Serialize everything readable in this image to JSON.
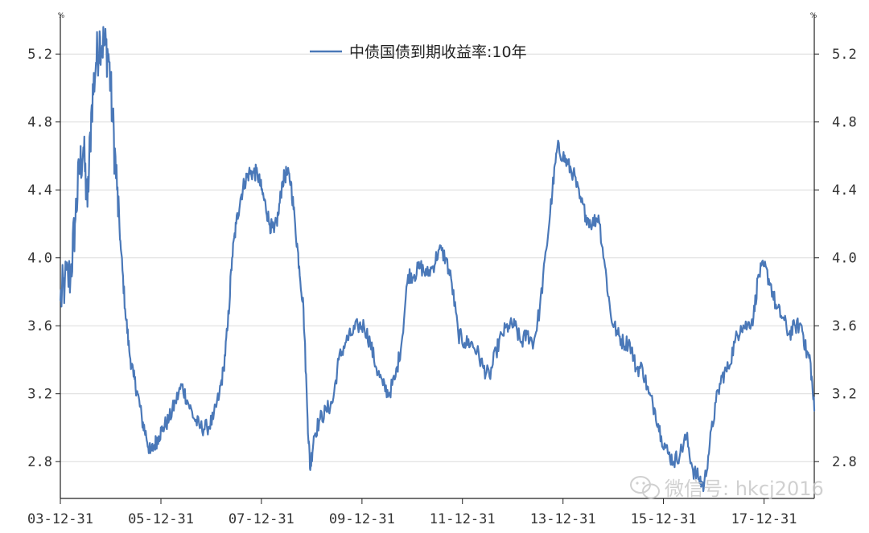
{
  "chart_data": {
    "type": "line",
    "unit_left": "%",
    "unit_right": "%",
    "yticks": [
      2.8,
      3.2,
      3.6,
      4.0,
      4.4,
      4.8,
      5.2
    ],
    "ytick_labels": [
      "2.8",
      "3.2",
      "3.6",
      "4.0",
      "4.4",
      "4.8",
      "5.2"
    ],
    "ylim": [
      2.5833,
      5.433
    ],
    "xlim": [
      "2003-12-31",
      "2018-12-31"
    ],
    "xticks": [
      {
        "date": "2003-12-31",
        "label": "03-12-31"
      },
      {
        "date": "2005-12-31",
        "label": "05-12-31"
      },
      {
        "date": "2007-12-31",
        "label": "07-12-31"
      },
      {
        "date": "2009-12-31",
        "label": "09-12-31"
      },
      {
        "date": "2011-12-31",
        "label": "11-12-31"
      },
      {
        "date": "2013-12-31",
        "label": "13-12-31"
      },
      {
        "date": "2015-12-31",
        "label": "15-12-31"
      },
      {
        "date": "2017-12-31",
        "label": "17-12-31"
      }
    ],
    "grid": true,
    "legend_position": "top-center",
    "series": [
      {
        "name": "中债国债到期收益率:10年",
        "color": "#4a78b8",
        "x": [
          "2003-12-31",
          "2004-02-01",
          "2004-03-15",
          "2004-04-15",
          "2004-05-15",
          "2004-06-15",
          "2004-07-15",
          "2004-08-15",
          "2004-09-15",
          "2004-10-15",
          "2004-11-15",
          "2004-12-15",
          "2005-01-15",
          "2005-02-15",
          "2005-03-15",
          "2005-04-15",
          "2005-05-15",
          "2005-06-15",
          "2005-07-15",
          "2005-08-15",
          "2005-09-15",
          "2005-10-15",
          "2005-11-15",
          "2005-12-15",
          "2006-01-15",
          "2006-03-01",
          "2006-04-15",
          "2006-06-01",
          "2006-07-15",
          "2006-09-01",
          "2006-10-15",
          "2006-12-01",
          "2007-01-15",
          "2007-03-01",
          "2007-04-01",
          "2007-05-01",
          "2007-06-01",
          "2007-07-01",
          "2007-08-01",
          "2007-09-01",
          "2007-10-01",
          "2007-11-01",
          "2007-12-01",
          "2008-01-01",
          "2008-02-01",
          "2008-03-01",
          "2008-04-01",
          "2008-05-01",
          "2008-06-01",
          "2008-07-01",
          "2008-08-01",
          "2008-09-01",
          "2008-10-01",
          "2008-11-01",
          "2008-12-01",
          "2008-12-20",
          "2009-01-15",
          "2009-03-01",
          "2009-04-15",
          "2009-06-01",
          "2009-07-15",
          "2009-09-01",
          "2009-10-15",
          "2009-12-01",
          "2010-01-15",
          "2010-03-01",
          "2010-04-15",
          "2010-06-01",
          "2010-07-15",
          "2010-09-01",
          "2010-10-15",
          "2010-12-01",
          "2011-01-15",
          "2011-03-01",
          "2011-04-15",
          "2011-06-01",
          "2011-07-15",
          "2011-09-01",
          "2011-10-15",
          "2011-12-01",
          "2012-01-15",
          "2012-03-01",
          "2012-04-15",
          "2012-06-01",
          "2012-07-15",
          "2012-09-01",
          "2012-10-15",
          "2012-12-01",
          "2013-01-15",
          "2013-03-01",
          "2013-04-15",
          "2013-06-01",
          "2013-07-15",
          "2013-09-01",
          "2013-10-15",
          "2013-11-20",
          "2013-12-31",
          "2014-02-01",
          "2014-03-15",
          "2014-05-01",
          "2014-06-15",
          "2014-08-01",
          "2014-09-15",
          "2014-11-01",
          "2014-12-15",
          "2015-02-01",
          "2015-03-15",
          "2015-05-01",
          "2015-06-15",
          "2015-08-01",
          "2015-09-15",
          "2015-11-01",
          "2015-12-15",
          "2016-02-01",
          "2016-03-15",
          "2016-05-01",
          "2016-06-15",
          "2016-08-01",
          "2016-09-15",
          "2016-10-20",
          "2016-12-01",
          "2017-01-15",
          "2017-03-01",
          "2017-04-15",
          "2017-06-01",
          "2017-07-15",
          "2017-09-01",
          "2017-10-15",
          "2017-11-20",
          "2018-01-01",
          "2018-02-15",
          "2018-04-01",
          "2018-05-15",
          "2018-07-01",
          "2018-08-15",
          "2018-10-01",
          "2018-11-01",
          "2018-12-01",
          "2018-12-31"
        ],
        "values": [
          3.75,
          3.85,
          3.9,
          4.2,
          4.5,
          4.65,
          4.3,
          4.9,
          5.15,
          5.3,
          5.25,
          5.2,
          4.8,
          4.4,
          4.05,
          3.7,
          3.45,
          3.3,
          3.2,
          3.05,
          2.95,
          2.85,
          2.9,
          2.95,
          3.0,
          3.05,
          3.15,
          3.25,
          3.15,
          3.05,
          3.0,
          3.0,
          3.05,
          3.2,
          3.35,
          3.6,
          4.0,
          4.2,
          4.35,
          4.45,
          4.5,
          4.5,
          4.5,
          4.4,
          4.3,
          4.2,
          4.15,
          4.25,
          4.45,
          4.5,
          4.45,
          4.2,
          3.95,
          3.7,
          3.05,
          2.75,
          2.95,
          3.05,
          3.1,
          3.15,
          3.4,
          3.5,
          3.55,
          3.6,
          3.6,
          3.5,
          3.35,
          3.25,
          3.2,
          3.3,
          3.5,
          3.9,
          3.9,
          3.95,
          3.9,
          3.95,
          4.05,
          4.0,
          3.85,
          3.55,
          3.5,
          3.5,
          3.45,
          3.35,
          3.3,
          3.45,
          3.55,
          3.6,
          3.6,
          3.5,
          3.55,
          3.5,
          3.7,
          4.05,
          4.4,
          4.65,
          4.6,
          4.55,
          4.5,
          4.35,
          4.25,
          4.2,
          4.25,
          3.95,
          3.65,
          3.55,
          3.5,
          3.5,
          3.35,
          3.35,
          3.2,
          3.1,
          2.95,
          2.85,
          2.8,
          2.85,
          2.95,
          2.75,
          2.7,
          2.65,
          2.9,
          3.15,
          3.3,
          3.35,
          3.5,
          3.6,
          3.6,
          3.65,
          3.9,
          3.95,
          3.85,
          3.7,
          3.65,
          3.55,
          3.6,
          3.6,
          3.45,
          3.4,
          3.1
        ]
      }
    ]
  },
  "watermark": {
    "text": "微信号: hkcj2016",
    "icon": "wechat-icon"
  }
}
